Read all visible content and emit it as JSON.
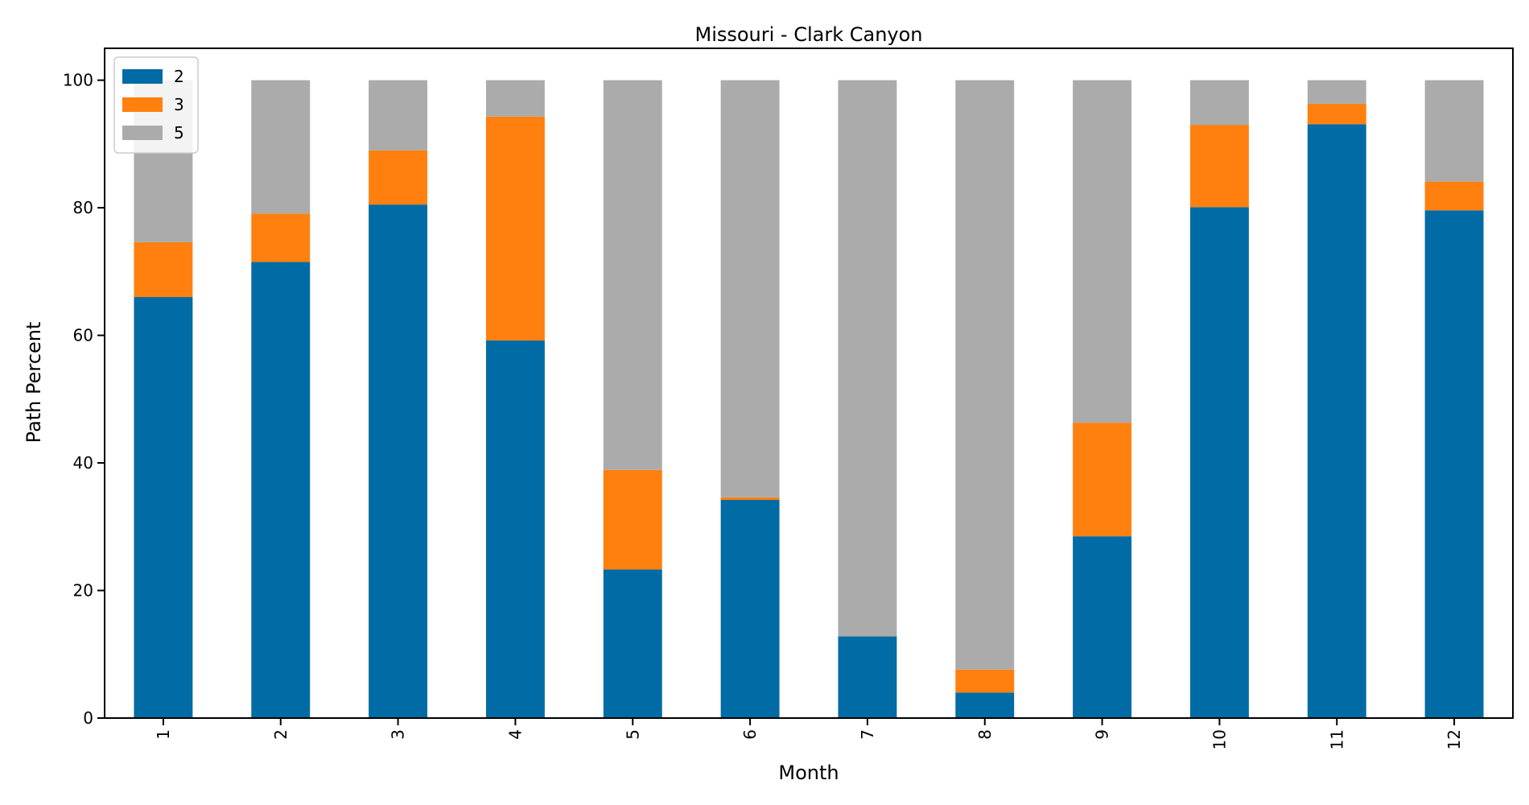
{
  "chart_data": {
    "type": "bar",
    "stacked": true,
    "title": "Missouri - Clark Canyon",
    "xlabel": "Month",
    "ylabel": "Path Percent",
    "categories": [
      "1",
      "2",
      "3",
      "4",
      "5",
      "6",
      "7",
      "8",
      "9",
      "10",
      "11",
      "12"
    ],
    "ylim": [
      0,
      105
    ],
    "yticks": [
      0,
      20,
      40,
      60,
      80,
      100
    ],
    "grid": false,
    "legend_position": "top-left",
    "series": [
      {
        "name": "2",
        "color": "#006BA4",
        "values": [
          66.0,
          71.5,
          80.5,
          59.2,
          23.3,
          34.2,
          12.8,
          4.0,
          28.5,
          80.1,
          93.1,
          79.6
        ]
      },
      {
        "name": "3",
        "color": "#FF800E",
        "values": [
          8.6,
          7.6,
          8.5,
          35.1,
          15.6,
          0.4,
          0.0,
          3.6,
          17.8,
          12.9,
          3.2,
          4.5
        ]
      },
      {
        "name": "5",
        "color": "#ABABAB",
        "values": [
          25.4,
          20.9,
          11.0,
          5.7,
          61.1,
          65.4,
          87.2,
          92.4,
          53.7,
          7.0,
          3.7,
          15.9
        ]
      }
    ]
  }
}
